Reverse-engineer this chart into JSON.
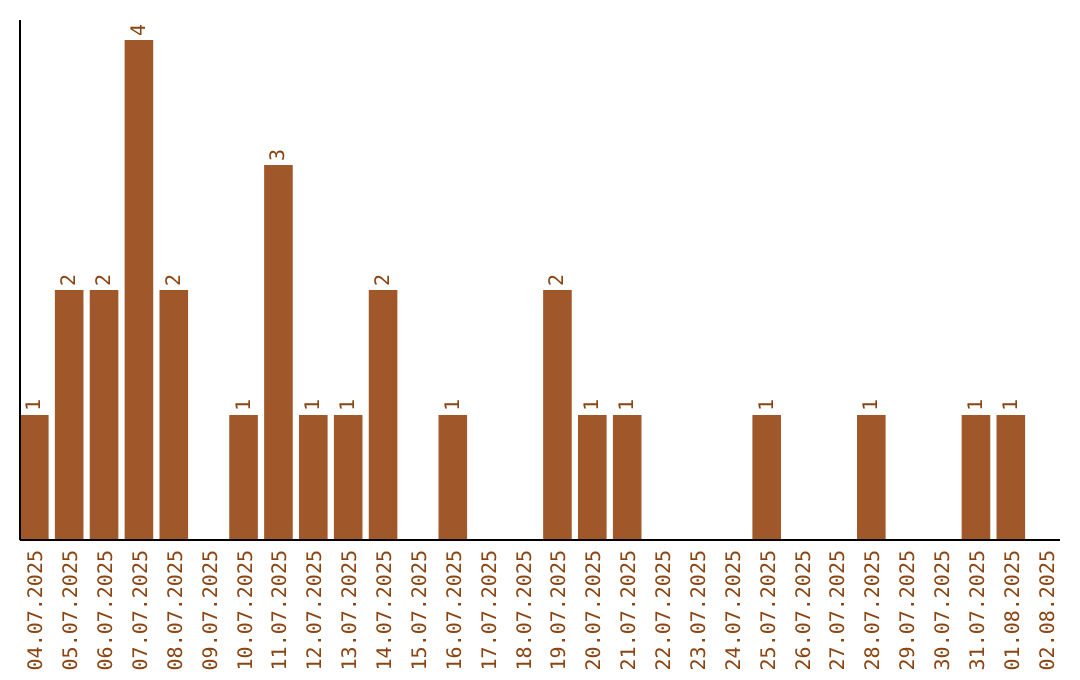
{
  "chart_data": {
    "type": "bar",
    "categories": [
      "04.07.2025",
      "05.07.2025",
      "06.07.2025",
      "07.07.2025",
      "08.07.2025",
      "09.07.2025",
      "10.07.2025",
      "11.07.2025",
      "12.07.2025",
      "13.07.2025",
      "14.07.2025",
      "15.07.2025",
      "16.07.2025",
      "17.07.2025",
      "18.07.2025",
      "19.07.2025",
      "20.07.2025",
      "21.07.2025",
      "22.07.2025",
      "23.07.2025",
      "24.07.2025",
      "25.07.2025",
      "26.07.2025",
      "27.07.2025",
      "28.07.2025",
      "29.07.2025",
      "30.07.2025",
      "31.07.2025",
      "01.08.2025",
      "02.08.2025"
    ],
    "values": [
      1,
      2,
      2,
      4,
      2,
      0,
      1,
      3,
      1,
      1,
      2,
      0,
      1,
      0,
      0,
      2,
      1,
      1,
      0,
      0,
      0,
      1,
      0,
      0,
      1,
      0,
      0,
      1,
      1,
      0
    ],
    "value_labels": [
      "1",
      "2",
      "2",
      "4",
      "2",
      null,
      "1",
      "3",
      "1",
      "1",
      "2",
      null,
      "1",
      null,
      null,
      "2",
      "1",
      "1",
      null,
      null,
      null,
      "1",
      null,
      null,
      "1",
      null,
      null,
      "1",
      "1",
      null
    ],
    "color": "#a0572a",
    "relative": false
  }
}
